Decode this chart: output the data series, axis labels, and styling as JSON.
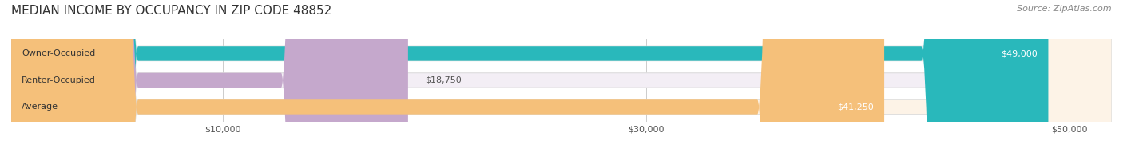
{
  "title": "MEDIAN INCOME BY OCCUPANCY IN ZIP CODE 48852",
  "source": "Source: ZipAtlas.com",
  "categories": [
    "Owner-Occupied",
    "Renter-Occupied",
    "Average"
  ],
  "values": [
    49000,
    18750,
    41250
  ],
  "bar_colors": [
    "#29b8bb",
    "#c5a8cc",
    "#f5c07a"
  ],
  "bar_bg_colors": [
    "#e8f8f8",
    "#f3eef5",
    "#fdf3e7"
  ],
  "label_colors": [
    "#ffffff",
    "#555555",
    "#ffffff"
  ],
  "value_labels": [
    "$49,000",
    "$18,750",
    "$41,250"
  ],
  "xlim": [
    0,
    52000
  ],
  "xticks": [
    10000,
    30000,
    50000
  ],
  "xtick_labels": [
    "$10,000",
    "$30,000",
    "$50,000"
  ],
  "title_fontsize": 11,
  "source_fontsize": 8,
  "label_fontsize": 8,
  "value_fontsize": 8,
  "tick_fontsize": 8,
  "background_color": "#ffffff",
  "bar_height": 0.55,
  "grid_color": "#cccccc"
}
